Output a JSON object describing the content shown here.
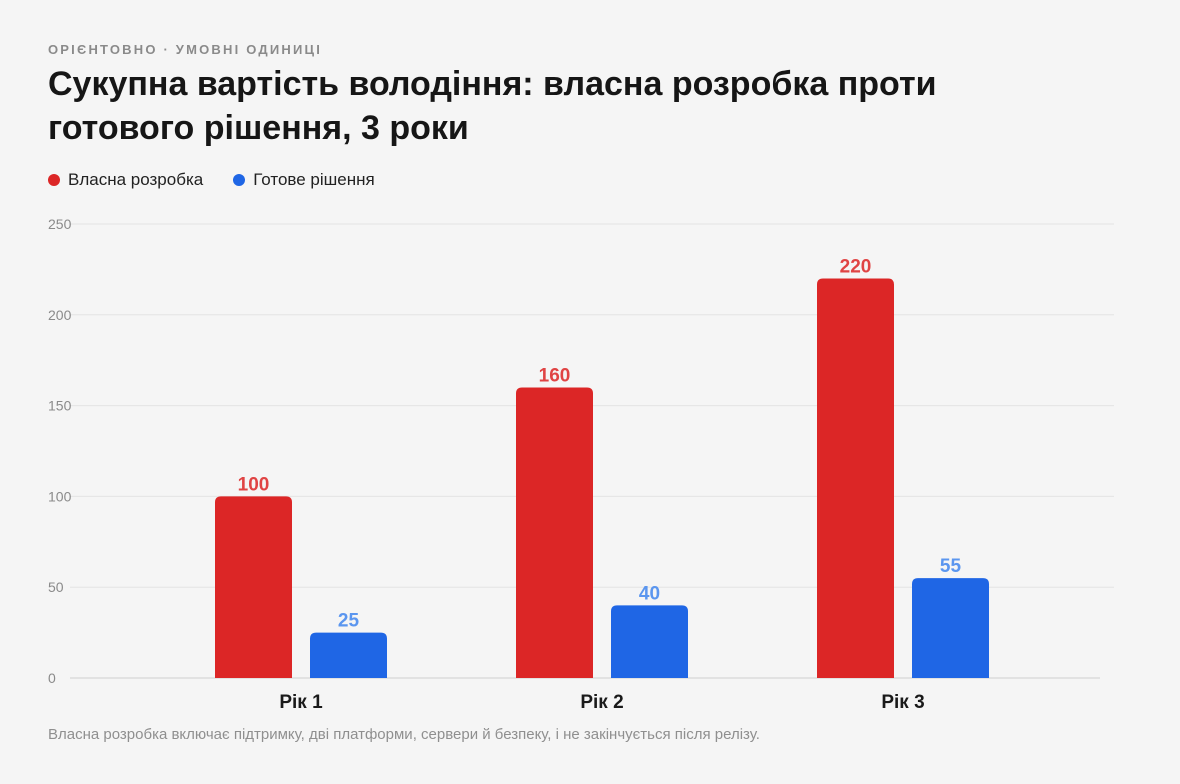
{
  "kicker": "ОРІЄНТОВНО · УМОВНІ ОДИНИЦІ",
  "colors": {
    "own": "#dc2626",
    "ready": "#1f66e5",
    "own_label": "#e04444",
    "ready_label": "#5b96ef"
  },
  "chart_data": {
    "type": "bar",
    "title": "Сукупна вартість володіння: власна розробка проти готового рішення, 3 роки",
    "categories": [
      "Рік 1",
      "Рік 2",
      "Рік 3"
    ],
    "series": [
      {
        "name": "Власна розробка",
        "values": [
          100,
          160,
          220
        ]
      },
      {
        "name": "Готове рішення",
        "values": [
          25,
          40,
          55
        ]
      }
    ],
    "ylim": [
      0,
      250
    ],
    "yticks": [
      0,
      50,
      100,
      150,
      200,
      250
    ],
    "grid": true,
    "legend": "top-left"
  },
  "footnote": "Власна розробка включає підтримку, дві платформи, сервери й безпеку, і не закінчується після релізу."
}
